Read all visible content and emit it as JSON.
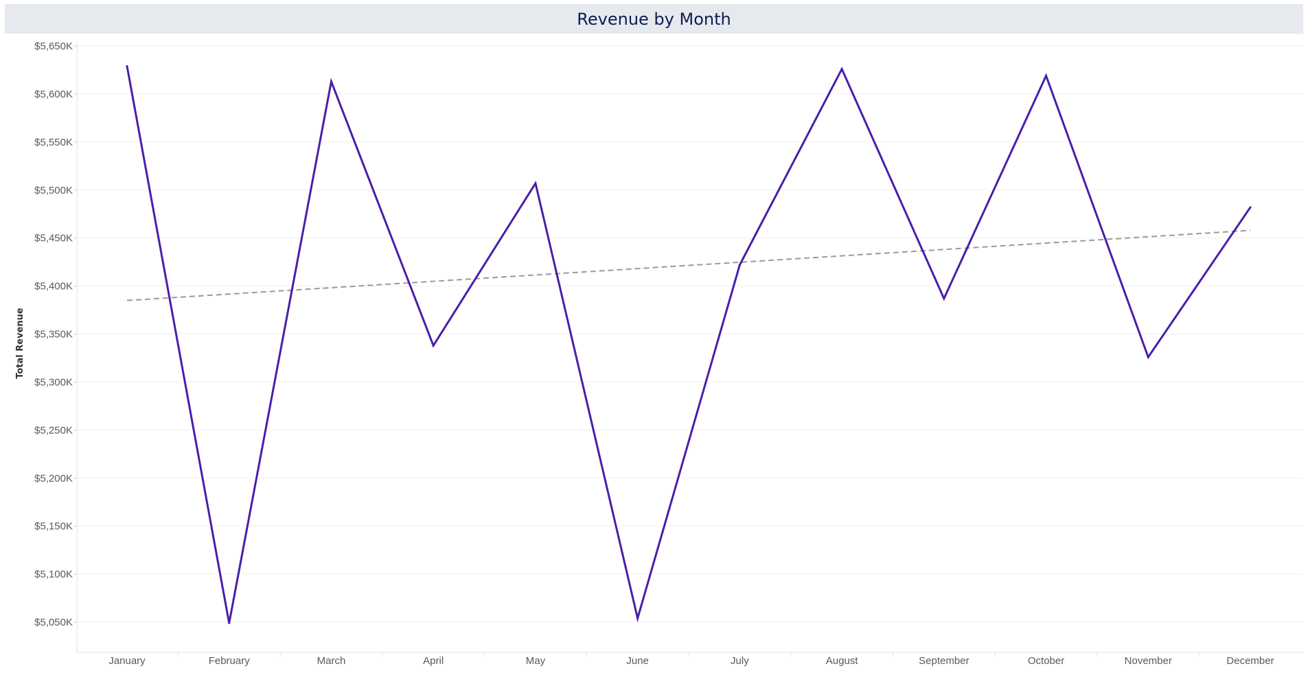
{
  "chart_data": {
    "type": "line",
    "title": "Revenue by Month",
    "xlabel": "",
    "ylabel": "Total Revenue",
    "categories": [
      "January",
      "February",
      "March",
      "April",
      "May",
      "June",
      "July",
      "August",
      "September",
      "October",
      "November",
      "December"
    ],
    "series": [
      {
        "values": [
          5629,
          5049,
          5613,
          5338,
          5507,
          5054,
          5422,
          5626,
          5387,
          5619,
          5326,
          5482
        ],
        "color": "#4a1ea8"
      }
    ],
    "trend_line": {
      "start": 5385,
      "end": 5458,
      "color": "#9a9a9a",
      "style": "dashed"
    },
    "yticks": [
      5050,
      5100,
      5150,
      5200,
      5250,
      5300,
      5350,
      5400,
      5450,
      5500,
      5550,
      5600,
      5650
    ],
    "ytick_labels": [
      "$5,050K",
      "$5,100K",
      "$5,150K",
      "$5,200K",
      "$5,250K",
      "$5,300K",
      "$5,350K",
      "$5,400K",
      "$5,450K",
      "$5,500K",
      "$5,550K",
      "$5,600K",
      "$5,650K"
    ],
    "ylim": [
      5020,
      5650
    ],
    "grid": true,
    "legend": "none"
  }
}
